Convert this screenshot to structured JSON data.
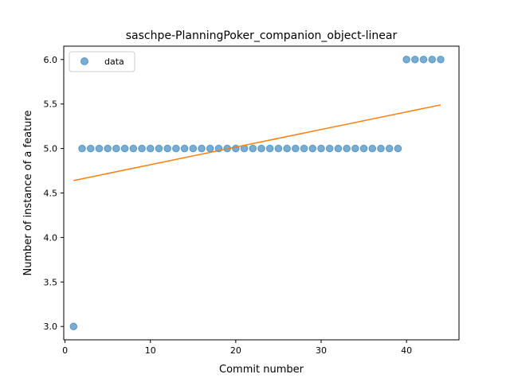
{
  "chart_data": {
    "type": "scatter",
    "title": "saschpe-PlanningPoker_companion_object-linear",
    "xlabel": "Commit number",
    "ylabel": "Number of instance of a feature",
    "xlim": [
      -0.15,
      46.15
    ],
    "ylim": [
      2.85,
      6.15
    ],
    "x_ticks": [
      0,
      10,
      20,
      30,
      40
    ],
    "x_tick_labels": [
      "0",
      "10",
      "20",
      "30",
      "40"
    ],
    "y_ticks": [
      3.0,
      3.5,
      4.0,
      4.5,
      5.0,
      5.5,
      6.0
    ],
    "y_tick_labels": [
      "3.0",
      "3.5",
      "4.0",
      "4.5",
      "5.0",
      "5.5",
      "6.0"
    ],
    "grid": false,
    "legend": {
      "position": "top-left",
      "entries": [
        "data"
      ]
    },
    "series": [
      {
        "name": "data",
        "kind": "scatter",
        "color": "#1f77b4",
        "alpha": 0.6,
        "x": [
          1,
          2,
          3,
          4,
          5,
          6,
          7,
          8,
          9,
          10,
          11,
          12,
          13,
          14,
          15,
          16,
          17,
          18,
          19,
          20,
          21,
          22,
          23,
          24,
          25,
          26,
          27,
          28,
          29,
          30,
          31,
          32,
          33,
          34,
          35,
          36,
          37,
          38,
          39,
          40,
          41,
          42,
          43,
          44
        ],
        "y": [
          3,
          5,
          5,
          5,
          5,
          5,
          5,
          5,
          5,
          5,
          5,
          5,
          5,
          5,
          5,
          5,
          5,
          5,
          5,
          5,
          5,
          5,
          5,
          5,
          5,
          5,
          5,
          5,
          5,
          5,
          5,
          5,
          5,
          5,
          5,
          5,
          5,
          5,
          5,
          6,
          6,
          6,
          6,
          6
        ]
      },
      {
        "kind": "line",
        "color": "#ff7f0e",
        "x": [
          1,
          44
        ],
        "y": [
          4.64,
          5.49
        ]
      }
    ]
  }
}
